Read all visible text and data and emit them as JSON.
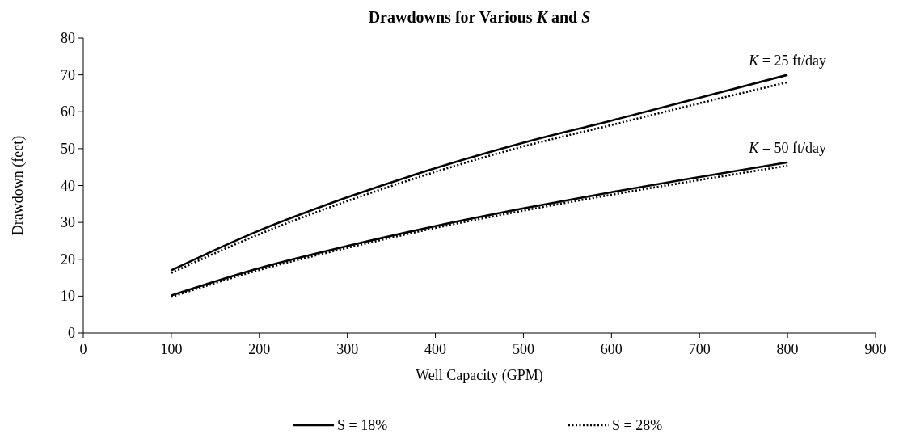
{
  "chart_data": {
    "type": "line",
    "title": "Drawdowns for Various K and S",
    "xlabel": "Well Capacity (GPM)",
    "ylabel": "Drawdown (feet)",
    "xlim": [
      0,
      900
    ],
    "xticks": [
      0,
      100,
      200,
      300,
      400,
      500,
      600,
      700,
      800,
      900
    ],
    "ylim": [
      0,
      80
    ],
    "yticks": [
      0,
      10,
      20,
      30,
      40,
      50,
      60,
      70,
      80
    ],
    "grid": false,
    "legend": "bottom",
    "marker": "none",
    "series": [
      {
        "name": "S = 18%",
        "color": "#000000",
        "line_style": "solid",
        "x": [
          100,
          200,
          300,
          400,
          500,
          600,
          700,
          800
        ],
        "values": [
          17,
          27.8,
          36.8,
          44.7,
          51.6,
          57.6,
          63.8,
          70
        ]
      },
      {
        "name": "S = 28%",
        "color": "#000000",
        "line_style": "dotted",
        "x": [
          100,
          200,
          300,
          400,
          500,
          600,
          700,
          800
        ],
        "values": [
          16.3,
          26.8,
          35.8,
          43.7,
          50.6,
          56.4,
          62.3,
          68
        ]
      },
      {
        "color": "#000000",
        "line_style": "solid",
        "x": [
          100,
          200,
          300,
          400,
          500,
          600,
          700,
          800
        ],
        "values": [
          10.2,
          17.6,
          23.6,
          29,
          33.8,
          38.2,
          42.3,
          46.3
        ]
      },
      {
        "color": "#000000",
        "line_style": "dotted",
        "x": [
          100,
          200,
          300,
          400,
          500,
          600,
          700,
          800
        ],
        "values": [
          9.8,
          17.1,
          23.1,
          28.5,
          33.2,
          37.5,
          41.5,
          45.4
        ]
      }
    ],
    "annotations": [
      {
        "text": "K = 25 ft/day",
        "x": 800,
        "y": 70
      },
      {
        "text": "K = 50 ft/day",
        "x": 800,
        "y": 46.3
      }
    ]
  }
}
